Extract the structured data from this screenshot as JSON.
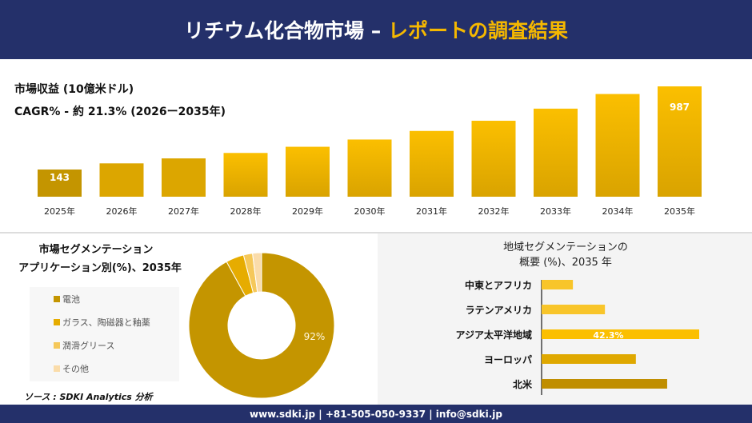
{
  "header": {
    "title_main": "リチウム化合物市場 –",
    "title_accent": "レポートの調査結果"
  },
  "colors": {
    "navy": "#24306a",
    "gold": "#f5b800",
    "dark_gold": "#c49500"
  },
  "chart_data": [
    {
      "type": "bar",
      "title": "市場収益 (10億米ドル)",
      "subtitle": "CAGR% - 約 21.3% (2026ー2035年)",
      "categories": [
        "2025年",
        "2026年",
        "2027年",
        "2028年",
        "2029年",
        "2030年",
        "2031年",
        "2032年",
        "2033年",
        "2034年",
        "2035年"
      ],
      "values": [
        143,
        173,
        210,
        255,
        309,
        375,
        455,
        552,
        669,
        812,
        987
      ],
      "data_labels": {
        "0": "143",
        "10": "987"
      }
    },
    {
      "type": "pie",
      "title_line1": "市場セグメンテーション",
      "title_line2": "アプリケーション別(%)、2035年",
      "categories": [
        "電池",
        "ガラス、陶磁器と釉薬",
        "潤滑グリース",
        "その他"
      ],
      "values": [
        92,
        4,
        2,
        2
      ],
      "colors": [
        "#c49500",
        "#e6ac00",
        "#f5c85a",
        "#fadcaa"
      ],
      "data_label": "92%",
      "legend": "left"
    },
    {
      "type": "bar",
      "orientation": "horizontal",
      "title_line1": "地域セグメンテーションの",
      "title_line2": "概要 (%)、2035 年",
      "categories": [
        "中東とアフリカ",
        "ラテンアメリカ",
        "アジア太平洋地域",
        "ヨーロッパ",
        "北米"
      ],
      "values": [
        8.4,
        17.0,
        42.3,
        25.3,
        33.7
      ],
      "colors": [
        "#f8c52a",
        "#f8c52a",
        "#fbbf00",
        "#dfa800",
        "#c08e00"
      ],
      "data_label": "42.3%"
    }
  ],
  "source": "ソース : SDKI Analytics 分析",
  "footer": "www.sdki.jp | +81-505-050-9337 | info@sdki.jp"
}
